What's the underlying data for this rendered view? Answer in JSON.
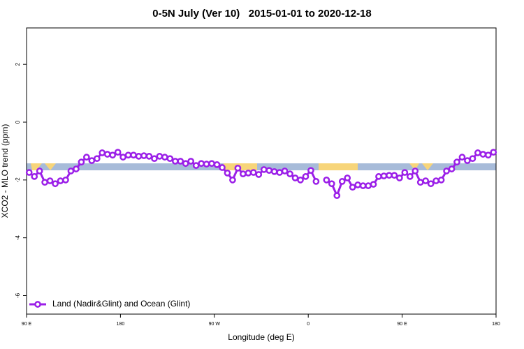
{
  "chart_data": {
    "type": "line",
    "title": "0-5N July (Ver 10)   2015-01-01 to 2020-12-18",
    "x_label": "Longitude (deg E)",
    "y_label": "XCO2 - MLO trend (ppm)",
    "xlim": [
      90,
      540
    ],
    "ylim": [
      -6.64,
      3.26
    ],
    "xticks": [
      {
        "value": 90,
        "label": "90 E"
      },
      180,
      {
        "value": 270,
        "label": "90 W"
      },
      {
        "value": 360,
        "label": "0"
      },
      {
        "value": 450,
        "label": "90 E"
      },
      {
        "value": 540,
        "label": "180"
      }
    ],
    "yticks": [
      2,
      0,
      -2,
      -4,
      -6
    ],
    "legend": "bottom-left",
    "x": [
      92.5,
      97.5,
      102.5,
      107.5,
      112.5,
      117.5,
      122.5,
      127.5,
      132.5,
      137.5,
      142.5,
      147.5,
      152.5,
      157.5,
      162.5,
      167.5,
      172.5,
      177.5,
      182.5,
      187.5,
      192.5,
      197.5,
      202.5,
      207.5,
      212.5,
      217.5,
      222.5,
      227.5,
      232.5,
      237.5,
      242.5,
      247.5,
      252.5,
      257.5,
      262.5,
      267.5,
      272.5,
      277.5,
      282.5,
      287.5,
      292.5,
      297.5,
      302.5,
      307.5,
      312.5,
      317.5,
      322.5,
      327.5,
      332.5,
      337.5,
      342.5,
      347.5,
      352.5,
      357.5,
      362.5,
      367.5,
      372.5,
      377.5,
      382.5,
      387.5,
      392.5,
      397.5,
      402.5,
      407.5,
      412.5,
      417.5,
      422.5,
      427.5,
      432.5,
      437.5,
      442.5,
      447.5,
      452.5,
      457.5,
      462.5,
      467.5,
      472.5,
      477.5,
      482.5,
      487.5,
      492.5,
      497.5,
      502.5,
      507.5,
      512.5,
      517.5,
      522.5,
      527.5,
      532.5,
      537.5
    ],
    "series": [
      {
        "name": "Land (Nadir&Glint) and Ocean (Glint)",
        "color": "#9b1fe8",
        "values": [
          -1.74,
          -1.88,
          -1.69,
          -2.08,
          -2.03,
          -2.13,
          -2.03,
          -2.0,
          -1.69,
          -1.62,
          -1.38,
          -1.21,
          -1.33,
          -1.26,
          -1.06,
          -1.11,
          -1.14,
          -1.04,
          -1.21,
          -1.14,
          -1.14,
          -1.18,
          -1.16,
          -1.18,
          -1.26,
          -1.18,
          -1.21,
          -1.26,
          -1.35,
          -1.35,
          -1.43,
          -1.35,
          -1.5,
          -1.43,
          -1.45,
          -1.43,
          -1.47,
          -1.57,
          -1.76,
          -2.0,
          -1.59,
          -1.79,
          -1.76,
          -1.74,
          -1.81,
          -1.64,
          -1.67,
          -1.71,
          -1.74,
          -1.69,
          -1.79,
          -1.93,
          -2.0,
          -1.88,
          -1.67,
          -2.05,
          null,
          -2.0,
          -2.13,
          -2.54,
          -2.05,
          -1.93,
          -2.25,
          -2.17,
          -2.2,
          -2.2,
          -2.15,
          -1.88,
          -1.86,
          -1.84,
          -1.84,
          -1.93,
          -1.74,
          -1.88,
          -1.69,
          -2.08,
          -2.03,
          -2.13,
          -2.03,
          -2.0,
          -1.69,
          -1.62,
          -1.38,
          -1.21,
          -1.33,
          -1.26,
          -1.06,
          -1.11,
          -1.14,
          -1.04
        ]
      }
    ]
  }
}
